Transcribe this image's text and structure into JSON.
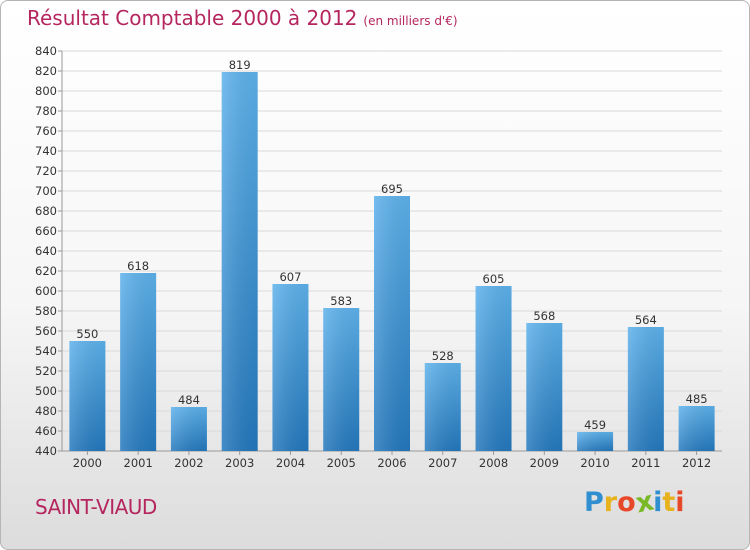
{
  "chart_data": {
    "type": "bar",
    "title": "Résultat Comptable 2000 à 2012",
    "subtitle": "(en milliers d'€)",
    "categories": [
      "2000",
      "2001",
      "2002",
      "2003",
      "2004",
      "2005",
      "2006",
      "2007",
      "2008",
      "2009",
      "2010",
      "2011",
      "2012"
    ],
    "values": [
      550,
      618,
      484,
      819,
      607,
      583,
      695,
      528,
      605,
      568,
      459,
      564,
      485
    ],
    "ylim": [
      440,
      840
    ],
    "ytick_step": 20,
    "xlabel": "",
    "ylabel": "",
    "grid": true,
    "bar_color": "#3a93d6"
  },
  "place_name": "SAINT-VIAUD",
  "logo": {
    "letters": [
      "P",
      "r",
      "o",
      "x",
      "i",
      "t",
      "i"
    ],
    "colors": [
      "#2f8fd0",
      "#e8b21c",
      "#e8482a",
      "#79b928",
      "#2f8fd0",
      "#e8b21c",
      "#e8482a"
    ]
  }
}
